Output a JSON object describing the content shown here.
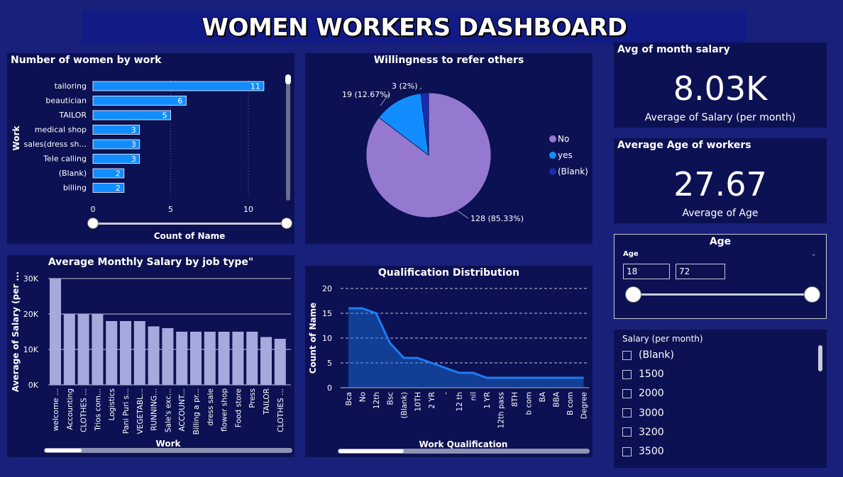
{
  "header": {
    "title": "WOMEN WORKERS DASHBOARD"
  },
  "colors": {
    "background": "#19207a",
    "panel": "#0b1152",
    "bar": "#118dff",
    "pie_no": "#9579d0",
    "pie_yes": "#118dff",
    "pie_blank": "#1a2bb0",
    "salary_bar": "#a5aadc",
    "area": "#1a75e6"
  },
  "work_chart": {
    "title": "Number of women by work",
    "ylabel": "Work",
    "xlabel": "Count of Name",
    "chart_data": {
      "type": "bar",
      "orientation": "horizontal",
      "categories": [
        "tailoring",
        "beautician",
        "TAILOR",
        "medical shop",
        "sales(dress sh...",
        "Tele calling",
        "(Blank)",
        "billing"
      ],
      "values": [
        11,
        6,
        5,
        3,
        3,
        3,
        2,
        2
      ],
      "xticks": [
        "0",
        "5",
        "10"
      ],
      "xlim": [
        0,
        12
      ]
    }
  },
  "refer_chart": {
    "title": "Willingness to refer others",
    "chart_data": {
      "type": "pie",
      "labels": [
        "No",
        "yes",
        "(Blank)"
      ],
      "values": [
        128,
        19,
        3
      ],
      "data_labels": [
        "128 (85.33%)",
        "19 (12.67%)",
        "3 (2%)"
      ]
    },
    "legend": [
      "No",
      "yes",
      "(Blank)"
    ]
  },
  "avg_salary_card": {
    "title": "Avg of month salary",
    "value": "8.03K",
    "label": "Average of Salary (per month)"
  },
  "avg_age_card": {
    "title": "Average Age of workers",
    "value": "27.67",
    "label": "Average of Age"
  },
  "age_slicer": {
    "title": "Age",
    "min": "18",
    "max": "72",
    "subtitle": "Age"
  },
  "salary_slicer": {
    "title": "Salary (per month)",
    "items": [
      "(Blank)",
      "1500",
      "2000",
      "3000",
      "3200",
      "3500"
    ]
  },
  "salary_chart": {
    "title": "Average Monthly Salary by job type\"",
    "ylabel": "Average of Salary (per ...",
    "xlabel": "Work",
    "chart_data": {
      "type": "bar",
      "categories": [
        "welcome ...",
        "Accounting",
        "CLOTHES ...",
        "Trios com...",
        "Logistics",
        "Pani Puri s...",
        "VEGETABL...",
        "RUNNING...",
        "Sale's exc...",
        "ACCOUNT...",
        "Billing a pr...",
        "dress sale",
        "flower shop",
        "Food store",
        "Press",
        "TAILOR",
        "CLOTHES ..."
      ],
      "values": [
        30000,
        20000,
        20000,
        20000,
        18000,
        18000,
        18000,
        16500,
        16000,
        15000,
        15000,
        15000,
        15000,
        15000,
        15000,
        13500,
        13000
      ],
      "yticks": [
        "0K",
        "10K",
        "20K",
        "30K"
      ],
      "ylim": [
        0,
        30000
      ]
    }
  },
  "qual_chart": {
    "title": "Qualification Distribution",
    "ylabel": "Count of Name",
    "xlabel": "Work Qualification",
    "chart_data": {
      "type": "area",
      "categories": [
        "Bca",
        "No",
        "12th",
        "Bsc",
        "(Blank)",
        "10TH",
        "2 YR",
        "-",
        "12 th",
        "nil",
        "1 YR",
        "12th pass",
        "8TH",
        "b com",
        "BA",
        "BBA",
        "B com",
        "Degree"
      ],
      "values": [
        16,
        16,
        15,
        9,
        6,
        6,
        5,
        4,
        3,
        3,
        2,
        2,
        2,
        2,
        2,
        2,
        2,
        2
      ],
      "yticks": [
        "0",
        "5",
        "10",
        "15",
        "20"
      ],
      "ylim": [
        0,
        20
      ]
    }
  }
}
